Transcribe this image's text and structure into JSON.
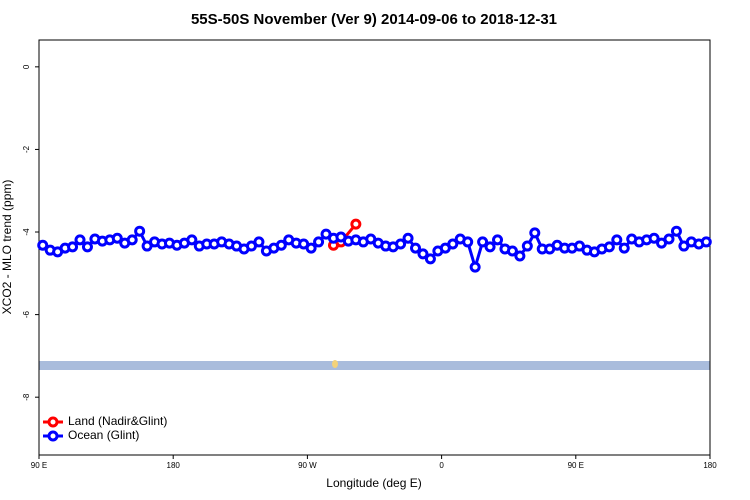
{
  "chart_data": {
    "type": "line",
    "title": "55S-50S November (Ver 9)   2014-09-06 to 2018-12-31",
    "x_label": "Longitude (deg E)",
    "y_label": "XCO2 - MLO trend (ppm)",
    "xlim": [
      90,
      540
    ],
    "xticks": [
      {
        "value": 90,
        "label": "90 E"
      },
      180,
      {
        "value": 270,
        "label": "90 W"
      },
      {
        "value": 360,
        "label": "0"
      },
      {
        "value": 450,
        "label": "90 E"
      },
      {
        "value": 540,
        "label": "180"
      }
    ],
    "ylim": [
      -9.4,
      0.65
    ],
    "yticks": [
      0,
      -2,
      -4,
      -6,
      -8
    ],
    "legend": "bottom-left",
    "series": [
      {
        "name": "Land (Nadir&Glint)",
        "color": "#ff0000",
        "x": [
          287.5,
          292.5,
          302.5
        ],
        "values": [
          -4.32,
          -4.24,
          -3.81
        ]
      },
      {
        "name": "Ocean (Glint)",
        "color": "#0000ff",
        "x": [
          92.5,
          97.5,
          102.5,
          107.5,
          112.5,
          117.5,
          122.5,
          127.5,
          132.5,
          137.5,
          142.5,
          147.5,
          152.5,
          157.5,
          162.5,
          167.5,
          172.5,
          177.5,
          182.5,
          187.5,
          192.5,
          197.5,
          202.5,
          207.5,
          212.5,
          217.5,
          222.5,
          227.5,
          232.5,
          237.5,
          242.5,
          247.5,
          252.5,
          257.5,
          262.5,
          267.5,
          272.5,
          277.5,
          282.5,
          287.5,
          292.5,
          297.5,
          302.5,
          307.5,
          312.5,
          317.5,
          322.5,
          327.5,
          332.5,
          337.5,
          342.5,
          347.5,
          352.5,
          357.5,
          362.5,
          367.5,
          372.5,
          377.5,
          382.5,
          387.5,
          392.5,
          397.5,
          402.5,
          407.5,
          412.5,
          417.5,
          422.5,
          427.5,
          432.5,
          437.5,
          442.5,
          447.5,
          452.5,
          457.5,
          462.5,
          467.5,
          472.5,
          477.5,
          482.5,
          487.5,
          492.5,
          497.5,
          502.5,
          507.5,
          512.5,
          517.5,
          522.5,
          527.5,
          532.5,
          537.5
        ],
        "values": [
          -4.32,
          -4.44,
          -4.48,
          -4.39,
          -4.36,
          -4.19,
          -4.36,
          -4.17,
          -4.22,
          -4.19,
          -4.15,
          -4.27,
          -4.19,
          -3.98,
          -4.34,
          -4.24,
          -4.29,
          -4.27,
          -4.32,
          -4.27,
          -4.19,
          -4.34,
          -4.29,
          -4.29,
          -4.24,
          -4.29,
          -4.34,
          -4.41,
          -4.34,
          -4.24,
          -4.46,
          -4.39,
          -4.32,
          -4.19,
          -4.27,
          -4.29,
          -4.39,
          -4.24,
          -4.05,
          -4.15,
          -4.12,
          -4.22,
          -4.19,
          -4.24,
          -4.17,
          -4.27,
          -4.34,
          -4.36,
          -4.29,
          -4.15,
          -4.39,
          -4.53,
          -4.65,
          -4.46,
          -4.39,
          -4.29,
          -4.17,
          -4.24,
          -4.85,
          -4.24,
          -4.36,
          -4.19,
          -4.41,
          -4.46,
          -4.58,
          -4.34,
          -4.02,
          -4.41,
          -4.41,
          -4.32,
          -4.39,
          -4.39,
          -4.34,
          -4.44,
          -4.48,
          -4.41,
          -4.36,
          -4.19,
          -4.39,
          -4.17,
          -4.24,
          -4.19,
          -4.15,
          -4.27,
          -4.17,
          -3.98,
          -4.34,
          -4.24,
          -4.29,
          -4.24
        ]
      }
    ]
  }
}
